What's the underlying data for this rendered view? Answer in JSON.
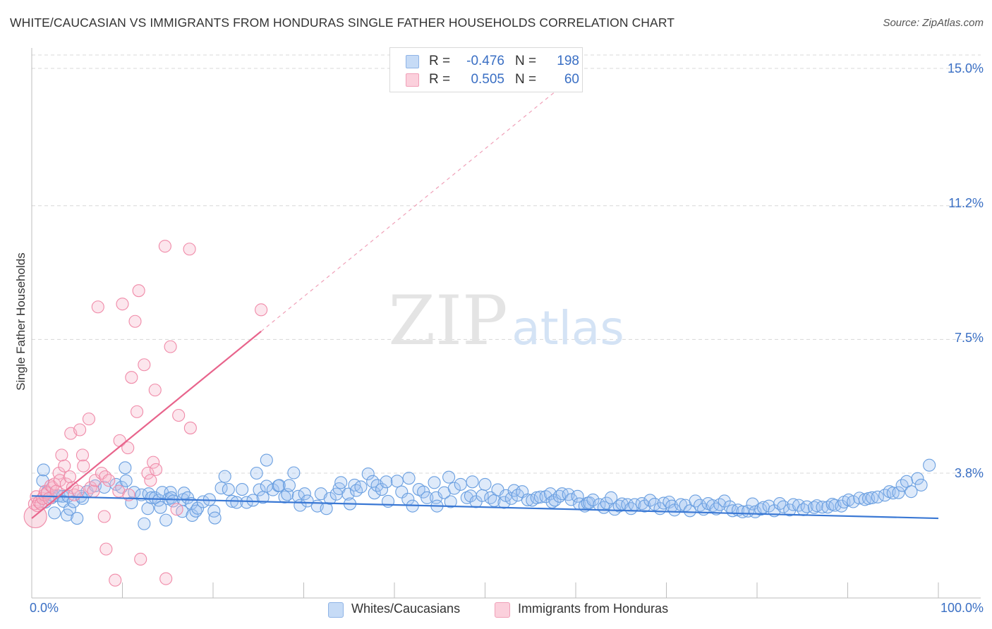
{
  "title": "WHITE/CAUCASIAN VS IMMIGRANTS FROM HONDURAS SINGLE FATHER HOUSEHOLDS CORRELATION CHART",
  "source": "Source: ZipAtlas.com",
  "watermark": {
    "zip": "ZIP",
    "atlas": "atlas"
  },
  "legend": {
    "rows": [
      {
        "r_label": "R =",
        "r_value": "-0.476",
        "n_label": "N =",
        "n_value": "198",
        "color": "#a8c8f0"
      },
      {
        "r_label": "R =",
        "r_value": "0.505",
        "n_label": "N =",
        "n_value": "60",
        "color": "#f5b8ca"
      }
    ]
  },
  "bottom_legend": [
    {
      "label": "Whites/Caucasians",
      "color": "#a8c8f0"
    },
    {
      "label": "Immigrants from Honduras",
      "color": "#f5b8ca"
    }
  ],
  "axis_labels": {
    "x_min": "0.0%",
    "x_max": "100.0%",
    "y_ticks": [
      "15.0%",
      "11.2%",
      "7.5%",
      "3.8%"
    ],
    "y_title": "Single Father Households"
  },
  "chart_data": {
    "type": "scatter",
    "title": "WHITE/CAUCASIAN VS IMMIGRANTS FROM HONDURAS SINGLE FATHER HOUSEHOLDS CORRELATION CHART",
    "xlabel": "",
    "ylabel": "Single Father Households",
    "xlim": [
      0,
      100
    ],
    "ylim": [
      0.2,
      15.7
    ],
    "y_gridlines": [
      15.0,
      11.2,
      7.5,
      3.8
    ],
    "legend_position": "top-center",
    "series": [
      {
        "name": "Whites/Caucasians",
        "color": "#6a9fe0",
        "trend": {
          "x0": 0,
          "y0": 3.17,
          "x1": 100,
          "y1": 2.55
        },
        "points": [
          [
            1.2,
            3.59
          ],
          [
            1.3,
            3.89
          ],
          [
            1.5,
            3.0
          ],
          [
            1.7,
            3.28
          ],
          [
            2.2,
            3.12
          ],
          [
            2.4,
            3.17
          ],
          [
            2.5,
            2.7
          ],
          [
            3.0,
            3.17
          ],
          [
            3.4,
            3.16
          ],
          [
            3.5,
            3.02
          ],
          [
            3.9,
            2.64
          ],
          [
            4.0,
            3.16
          ],
          [
            4.2,
            2.8
          ],
          [
            4.6,
            3.01
          ],
          [
            5.0,
            2.55
          ],
          [
            5.4,
            3.16
          ],
          [
            5.6,
            3.1
          ],
          [
            6.1,
            3.29
          ],
          [
            7.0,
            3.45
          ],
          [
            8.0,
            3.41
          ],
          [
            9.3,
            3.49
          ],
          [
            9.9,
            3.41
          ],
          [
            10.3,
            3.95
          ],
          [
            10.4,
            3.59
          ],
          [
            11.0,
            2.98
          ],
          [
            11.3,
            3.27
          ],
          [
            12.1,
            3.2
          ],
          [
            12.4,
            2.4
          ],
          [
            12.8,
            2.82
          ],
          [
            12.9,
            3.23
          ],
          [
            13.2,
            3.12
          ],
          [
            13.6,
            3.12
          ],
          [
            14.0,
            3.05
          ],
          [
            14.2,
            2.85
          ],
          [
            14.4,
            3.27
          ],
          [
            14.8,
            2.5
          ],
          [
            15.1,
            3.09
          ],
          [
            15.3,
            3.27
          ],
          [
            15.4,
            3.12
          ],
          [
            15.6,
            3.03
          ],
          [
            16.6,
            2.74
          ],
          [
            16.7,
            3.07
          ],
          [
            16.8,
            3.25
          ],
          [
            17.2,
            3.12
          ],
          [
            17.6,
            2.96
          ],
          [
            17.7,
            2.63
          ],
          [
            18.1,
            2.75
          ],
          [
            18.3,
            2.83
          ],
          [
            18.9,
            3.01
          ],
          [
            19.6,
            3.07
          ],
          [
            20.1,
            2.75
          ],
          [
            20.2,
            2.56
          ],
          [
            20.9,
            3.39
          ],
          [
            21.3,
            3.71
          ],
          [
            21.7,
            3.35
          ],
          [
            22.1,
            3.02
          ],
          [
            22.6,
            2.99
          ],
          [
            23.2,
            3.35
          ],
          [
            23.7,
            2.99
          ],
          [
            24.4,
            3.05
          ],
          [
            24.8,
            3.8
          ],
          [
            25.1,
            3.34
          ],
          [
            25.5,
            3.13
          ],
          [
            25.9,
            4.16
          ],
          [
            25.9,
            3.44
          ],
          [
            26.6,
            3.34
          ],
          [
            27.2,
            3.45
          ],
          [
            27.3,
            3.46
          ],
          [
            27.9,
            3.14
          ],
          [
            28.2,
            3.21
          ],
          [
            28.4,
            3.46
          ],
          [
            28.9,
            3.81
          ],
          [
            29.4,
            3.16
          ],
          [
            29.6,
            2.91
          ],
          [
            30.1,
            3.23
          ],
          [
            30.4,
            3.03
          ],
          [
            31.5,
            2.89
          ],
          [
            31.9,
            3.23
          ],
          [
            32.5,
            2.82
          ],
          [
            32.9,
            3.1
          ],
          [
            33.6,
            3.22
          ],
          [
            33.9,
            3.37
          ],
          [
            34.1,
            3.54
          ],
          [
            34.9,
            3.22
          ],
          [
            35.1,
            2.95
          ],
          [
            35.6,
            3.47
          ],
          [
            35.8,
            3.32
          ],
          [
            36.3,
            3.42
          ],
          [
            37.1,
            3.78
          ],
          [
            37.6,
            3.57
          ],
          [
            37.8,
            3.25
          ],
          [
            38.1,
            3.46
          ],
          [
            38.6,
            3.35
          ],
          [
            39.1,
            3.56
          ],
          [
            39.3,
            3.02
          ],
          [
            40.3,
            3.58
          ],
          [
            40.8,
            3.28
          ],
          [
            41.5,
            3.08
          ],
          [
            41.6,
            3.66
          ],
          [
            42.0,
            2.89
          ],
          [
            42.7,
            3.35
          ],
          [
            43.2,
            3.28
          ],
          [
            43.6,
            3.12
          ],
          [
            44.4,
            3.54
          ],
          [
            44.6,
            3.12
          ],
          [
            44.7,
            2.89
          ],
          [
            45.5,
            3.26
          ],
          [
            46.0,
            3.69
          ],
          [
            46.2,
            3.01
          ],
          [
            46.6,
            3.38
          ],
          [
            47.3,
            3.49
          ],
          [
            48.0,
            3.12
          ],
          [
            48.4,
            3.17
          ],
          [
            48.6,
            3.56
          ],
          [
            49.0,
            3.01
          ],
          [
            49.7,
            3.18
          ],
          [
            50.0,
            3.49
          ],
          [
            50.6,
            3.12
          ],
          [
            51.0,
            3.04
          ],
          [
            51.4,
            3.34
          ],
          [
            52.1,
            2.99
          ],
          [
            52.3,
            3.18
          ],
          [
            52.9,
            3.1
          ],
          [
            53.2,
            3.32
          ],
          [
            53.6,
            3.19
          ],
          [
            54.1,
            3.29
          ],
          [
            54.7,
            3.06
          ],
          [
            55.2,
            3.05
          ],
          [
            55.7,
            3.12
          ],
          [
            56.1,
            3.14
          ],
          [
            56.7,
            3.15
          ],
          [
            57.2,
            3.23
          ],
          [
            57.4,
            3.0
          ],
          [
            57.7,
            3.05
          ],
          [
            58.2,
            3.16
          ],
          [
            58.5,
            3.23
          ],
          [
            59.2,
            3.21
          ],
          [
            59.5,
            3.07
          ],
          [
            60.2,
            3.16
          ],
          [
            60.4,
            2.95
          ],
          [
            61.0,
            2.89
          ],
          [
            61.3,
            2.97
          ],
          [
            61.5,
            2.98
          ],
          [
            61.9,
            3.06
          ],
          [
            62.6,
            2.93
          ],
          [
            63.1,
            2.85
          ],
          [
            63.4,
            2.97
          ],
          [
            63.9,
            3.12
          ],
          [
            64.3,
            2.8
          ],
          [
            64.8,
            2.89
          ],
          [
            65.1,
            2.95
          ],
          [
            65.7,
            2.93
          ],
          [
            66.1,
            2.82
          ],
          [
            66.5,
            2.93
          ],
          [
            67.3,
            2.96
          ],
          [
            67.6,
            2.89
          ],
          [
            68.2,
            3.05
          ],
          [
            68.7,
            2.94
          ],
          [
            69.3,
            2.82
          ],
          [
            69.7,
            2.97
          ],
          [
            70.3,
            3.0
          ],
          [
            70.6,
            2.89
          ],
          [
            70.9,
            2.78
          ],
          [
            71.6,
            2.93
          ],
          [
            72.1,
            2.91
          ],
          [
            72.6,
            2.76
          ],
          [
            73.2,
            3.03
          ],
          [
            73.7,
            2.91
          ],
          [
            74.1,
            2.8
          ],
          [
            74.6,
            2.96
          ],
          [
            75.1,
            2.9
          ],
          [
            75.5,
            2.81
          ],
          [
            75.9,
            2.93
          ],
          [
            76.4,
            3.03
          ],
          [
            77.0,
            2.87
          ],
          [
            77.3,
            2.76
          ],
          [
            77.9,
            2.78
          ],
          [
            78.4,
            2.73
          ],
          [
            79.0,
            2.75
          ],
          [
            79.5,
            2.95
          ],
          [
            79.8,
            2.73
          ],
          [
            80.4,
            2.8
          ],
          [
            80.7,
            2.85
          ],
          [
            81.3,
            2.89
          ],
          [
            81.9,
            2.76
          ],
          [
            82.5,
            2.96
          ],
          [
            82.9,
            2.87
          ],
          [
            83.6,
            2.78
          ],
          [
            84.0,
            2.93
          ],
          [
            84.6,
            2.91
          ],
          [
            85.1,
            2.79
          ],
          [
            85.5,
            2.87
          ],
          [
            86.3,
            2.85
          ],
          [
            86.6,
            2.9
          ],
          [
            87.2,
            2.86
          ],
          [
            87.8,
            2.86
          ],
          [
            88.3,
            2.94
          ],
          [
            88.6,
            2.91
          ],
          [
            89.3,
            2.89
          ],
          [
            89.6,
            3.0
          ],
          [
            90.1,
            3.06
          ],
          [
            90.6,
            3.01
          ],
          [
            91.3,
            3.11
          ],
          [
            91.9,
            3.07
          ],
          [
            92.3,
            3.1
          ],
          [
            92.7,
            3.12
          ],
          [
            93.3,
            3.14
          ],
          [
            94.1,
            3.19
          ],
          [
            94.6,
            3.29
          ],
          [
            95.0,
            3.25
          ],
          [
            95.6,
            3.26
          ],
          [
            96.0,
            3.46
          ],
          [
            96.5,
            3.57
          ],
          [
            97.0,
            3.29
          ],
          [
            97.7,
            3.65
          ],
          [
            98.1,
            3.47
          ],
          [
            99.0,
            4.02
          ]
        ]
      },
      {
        "name": "Immigrants from Honduras",
        "color": "#f08aa8",
        "trend": {
          "x0": 0,
          "y0": 2.55,
          "x1": 100,
          "y1": 23.0,
          "solid_until": 25.3
        },
        "points": [
          [
            0.3,
            2.95
          ],
          [
            0.5,
            3.15
          ],
          [
            0.6,
            2.9
          ],
          [
            0.8,
            3.0
          ],
          [
            1.0,
            2.95
          ],
          [
            1.2,
            3.1
          ],
          [
            1.4,
            3.2
          ],
          [
            1.5,
            3.3
          ],
          [
            1.7,
            3.25
          ],
          [
            1.9,
            3.1
          ],
          [
            2.1,
            3.45
          ],
          [
            2.3,
            3.4
          ],
          [
            2.5,
            3.5
          ],
          [
            2.7,
            3.3
          ],
          [
            3.0,
            3.8
          ],
          [
            3.1,
            3.6
          ],
          [
            3.3,
            4.3
          ],
          [
            3.6,
            4.0
          ],
          [
            3.8,
            3.5
          ],
          [
            4.2,
            3.7
          ],
          [
            4.3,
            4.9
          ],
          [
            4.5,
            3.4
          ],
          [
            4.7,
            3.2
          ],
          [
            5.1,
            3.3
          ],
          [
            5.3,
            5.0
          ],
          [
            5.6,
            4.3
          ],
          [
            5.7,
            4.0
          ],
          [
            6.3,
            5.3
          ],
          [
            6.5,
            3.4
          ],
          [
            6.8,
            3.3
          ],
          [
            7.0,
            3.6
          ],
          [
            7.3,
            8.4
          ],
          [
            7.7,
            3.8
          ],
          [
            8.0,
            2.6
          ],
          [
            8.1,
            3.7
          ],
          [
            8.2,
            1.7
          ],
          [
            8.5,
            3.6
          ],
          [
            9.2,
            0.84
          ],
          [
            9.6,
            3.3
          ],
          [
            9.7,
            4.7
          ],
          [
            10.0,
            8.48
          ],
          [
            10.6,
            4.5
          ],
          [
            10.7,
            3.2
          ],
          [
            11.0,
            6.45
          ],
          [
            11.4,
            8.0
          ],
          [
            11.6,
            5.5
          ],
          [
            11.8,
            8.85
          ],
          [
            12.0,
            1.42
          ],
          [
            12.4,
            6.8
          ],
          [
            12.8,
            3.8
          ],
          [
            13.1,
            3.6
          ],
          [
            13.4,
            4.1
          ],
          [
            13.6,
            6.1
          ],
          [
            13.7,
            3.9
          ],
          [
            14.7,
            10.08
          ],
          [
            14.8,
            0.88
          ],
          [
            15.3,
            7.3
          ],
          [
            16.0,
            2.8
          ],
          [
            16.2,
            5.4
          ],
          [
            17.4,
            10.0
          ],
          [
            17.5,
            5.05
          ],
          [
            25.3,
            8.32
          ]
        ]
      }
    ]
  }
}
